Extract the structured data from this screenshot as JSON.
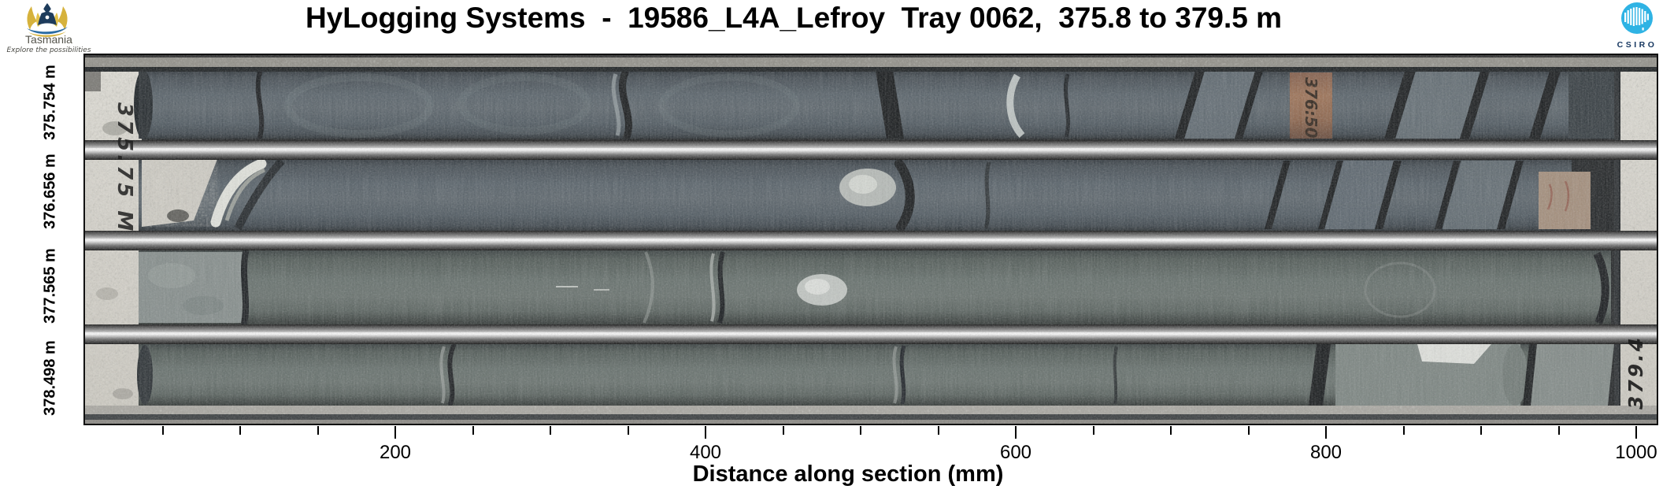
{
  "chart_data": {
    "type": "table",
    "title": "HyLogging Systems  -  19586_L4A_Lefroy  Tray 0062,  375.8 to 379.5 m",
    "xlabel": "Distance along section (mm)",
    "x_axis": {
      "min": 0,
      "max": 1000,
      "unit": "mm",
      "minor_tick_step": 50,
      "major_ticks": [
        200,
        400,
        600,
        800,
        1000
      ]
    },
    "rows": [
      {
        "depth_label": "375.754 m"
      },
      {
        "depth_label": "376.656 m"
      },
      {
        "depth_label": "377.565 m"
      },
      {
        "depth_label": "378.498 m"
      }
    ],
    "annotations": {
      "left_tray_edge": "375.75 M",
      "core_block_marker": "376:50",
      "right_tray_edge": "379.4"
    },
    "borehole": "19586_L4A_Lefroy",
    "tray_number": "0062",
    "depth_range_m": [
      375.8,
      379.5
    ]
  },
  "logos": {
    "tasmania": {
      "name": "Tasmania",
      "tagline": "Explore the possibilities"
    },
    "csiro": {
      "label": "CSIRO"
    }
  },
  "colors": {
    "core_dark": "#47525a",
    "core_light": "#5f6a66",
    "rail_highlight": "#f2f2f2",
    "tray_edge": "#dcd9d1",
    "wood_block": "#96664a",
    "csiro_blue": "#2fb3e4",
    "tasmania_yellow": "#d6b23c",
    "tasmania_navy": "#1e3c5c"
  }
}
